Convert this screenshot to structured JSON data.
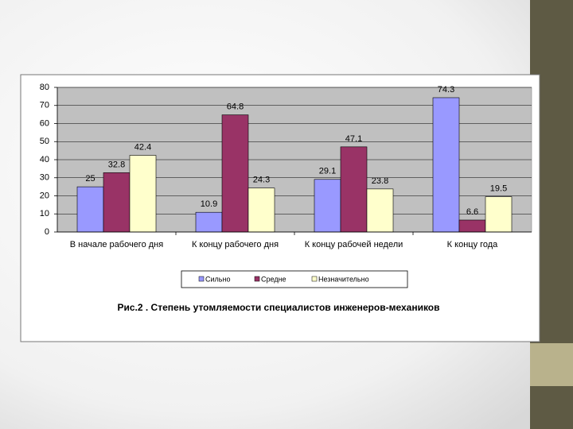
{
  "chart_data": {
    "type": "bar",
    "title": "Рис.2 . Степень утомляемости специалистов инженеров-механиков",
    "categories": [
      "В начале рабочего дня",
      "К концу рабочего дня",
      "К концу рабочей недели",
      "К концу года"
    ],
    "series": [
      {
        "name": "Сильно",
        "color": "#9999ff",
        "values": [
          25,
          10.9,
          29.1,
          74.3
        ]
      },
      {
        "name": "Средне",
        "color": "#993366",
        "values": [
          32.8,
          64.8,
          47.1,
          6.6
        ]
      },
      {
        "name": "Незначительно",
        "color": "#ffffcc",
        "values": [
          42.4,
          24.3,
          23.8,
          19.5
        ]
      }
    ],
    "ylim": [
      0,
      80
    ],
    "yticks": [
      0,
      10,
      20,
      30,
      40,
      50,
      60,
      70,
      80
    ],
    "grid": true,
    "legend": "bottom"
  }
}
